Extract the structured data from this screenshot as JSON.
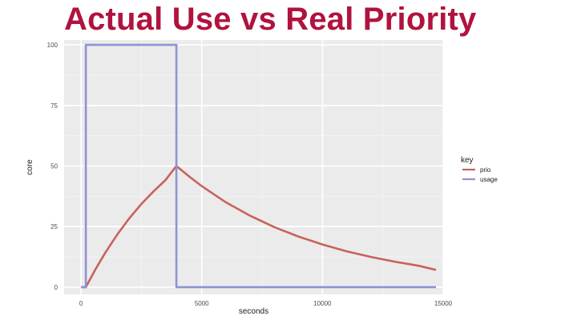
{
  "slide": {
    "title": "Actual Use vs Real Priority"
  },
  "chart_data": {
    "type": "line",
    "title": "",
    "xlabel": "seconds",
    "ylabel": "core",
    "xlim": [
      -700,
      15000
    ],
    "ylim": [
      -3,
      102
    ],
    "x_ticks": [
      0,
      5000,
      10000,
      15000
    ],
    "x_tick_labels": [
      "0",
      "5000",
      "10000",
      "15000"
    ],
    "y_ticks": [
      0,
      25,
      50,
      75,
      100
    ],
    "y_tick_labels": [
      "0",
      "25",
      "50",
      "75",
      "100"
    ],
    "grid": true,
    "background": "#ebebeb",
    "legend": {
      "title": "key",
      "position": "right"
    },
    "series": [
      {
        "name": "prio",
        "color": "#c8625c",
        "x": [
          0,
          200,
          600,
          1000,
          1500,
          2000,
          2500,
          3000,
          3500,
          3950,
          4500,
          5000,
          6000,
          7000,
          8000,
          9000,
          10000,
          11000,
          12000,
          13000,
          14000,
          14700
        ],
        "y": [
          0,
          0,
          7.4,
          14.1,
          21.7,
          28.4,
          34.3,
          39.5,
          44.2,
          50,
          45.5,
          41.7,
          35.0,
          29.5,
          24.8,
          20.9,
          17.6,
          14.8,
          12.5,
          10.5,
          8.8,
          7.1
        ]
      },
      {
        "name": "usage",
        "color": "#8f93d3",
        "x": [
          0,
          200,
          200,
          3950,
          3950,
          14700
        ],
        "y": [
          0,
          0,
          100,
          100,
          0,
          0
        ]
      }
    ]
  }
}
